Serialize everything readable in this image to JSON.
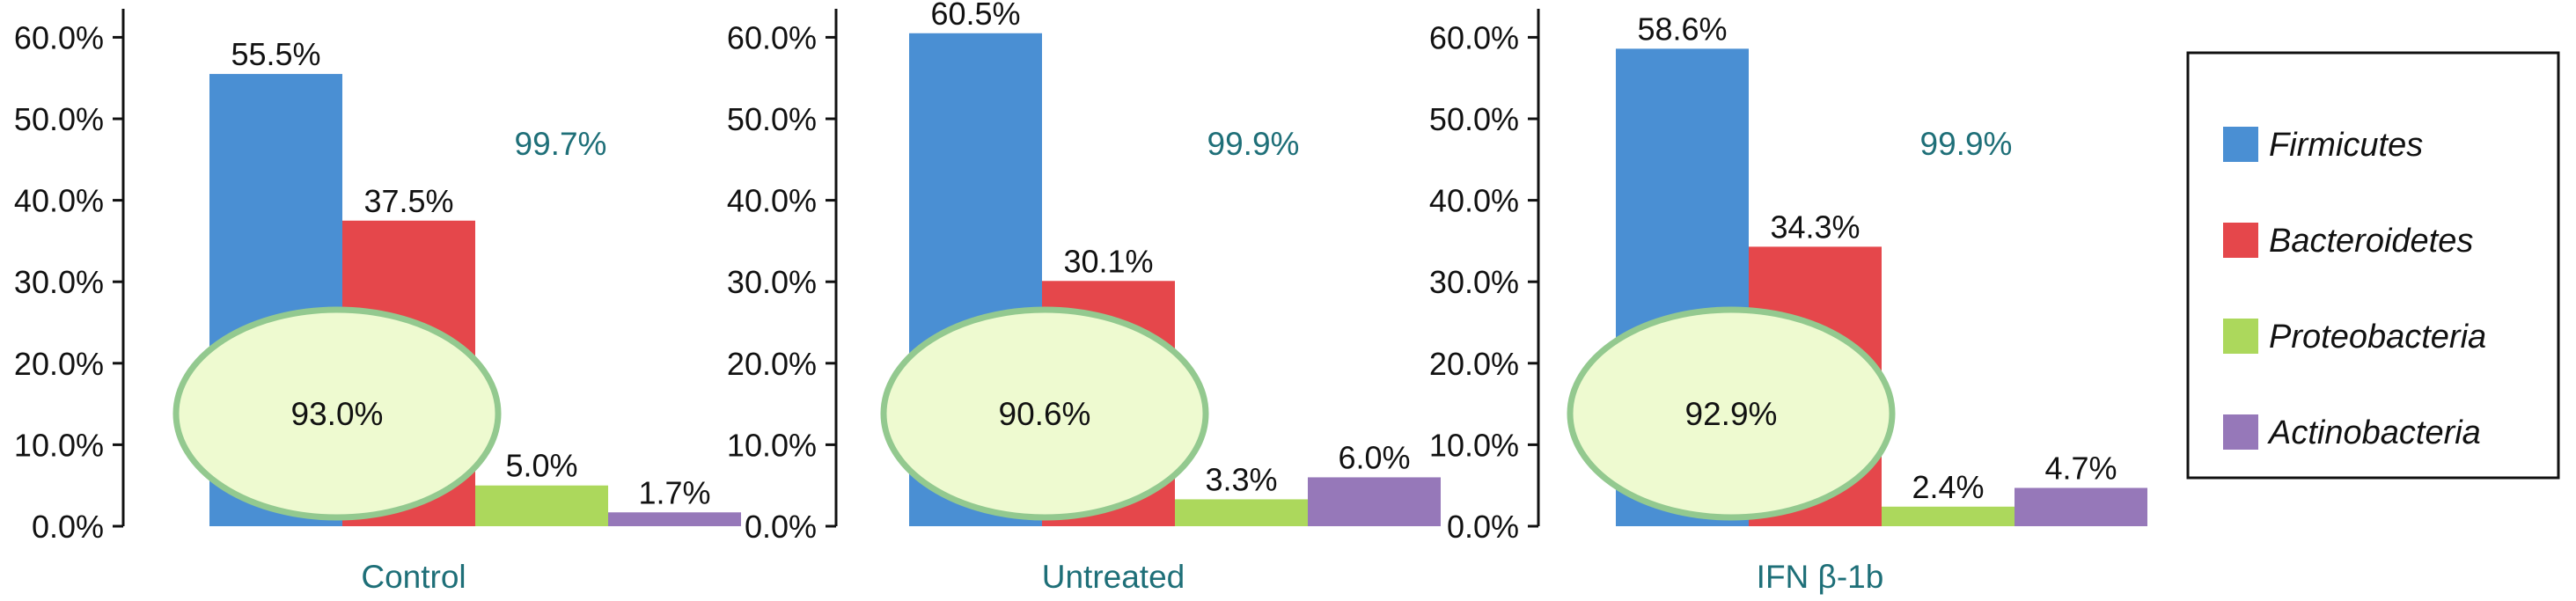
{
  "colors": {
    "accent_text": "#1e6f78",
    "ellipse_fill": "#eefad0",
    "ellipse_stroke": "#93c98f",
    "axis": "#111111"
  },
  "chart_data": [
    {
      "type": "bar",
      "xlabel": "Control",
      "categories": [
        "Firmicutes",
        "Bacteroidetes",
        "Proteobacteria",
        "Actinobacteria"
      ],
      "values": [
        55.5,
        37.5,
        5.0,
        1.7
      ],
      "value_labels": [
        "55.5%",
        "37.5%",
        "5.0%",
        "1.7%"
      ],
      "yticks": [
        "0.0%",
        "10.0%",
        "20.0%",
        "30.0%",
        "40.0%",
        "50.0%",
        "60.0%"
      ],
      "ylim": [
        0,
        65
      ],
      "summary_label": "99.7%",
      "ellipse_label": "93.0%"
    },
    {
      "type": "bar",
      "xlabel": "Untreated",
      "categories": [
        "Firmicutes",
        "Bacteroidetes",
        "Proteobacteria",
        "Actinobacteria"
      ],
      "values": [
        60.5,
        30.1,
        3.3,
        6.0
      ],
      "value_labels": [
        "60.5%",
        "30.1%",
        "3.3%",
        "6.0%"
      ],
      "yticks": [
        "0.0%",
        "10.0%",
        "20.0%",
        "30.0%",
        "40.0%",
        "50.0%",
        "60.0%"
      ],
      "ylim": [
        0,
        65
      ],
      "summary_label": "99.9%",
      "ellipse_label": "90.6%"
    },
    {
      "type": "bar",
      "xlabel": "IFN β-1b",
      "categories": [
        "Firmicutes",
        "Bacteroidetes",
        "Proteobacteria",
        "Actinobacteria"
      ],
      "values": [
        58.6,
        34.3,
        2.4,
        4.7
      ],
      "value_labels": [
        "58.6%",
        "34.3%",
        "2.4%",
        "4.7%"
      ],
      "yticks": [
        "0.0%",
        "10.0%",
        "20.0%",
        "30.0%",
        "40.0%",
        "50.0%",
        "60.0%"
      ],
      "ylim": [
        0,
        65
      ],
      "summary_label": "99.9%",
      "ellipse_label": "92.9%"
    }
  ],
  "legend": {
    "placement": "right",
    "items": [
      {
        "label": "Firmicutes",
        "color": "#4a8fd3"
      },
      {
        "label": "Bacteroidetes",
        "color": "#e5474b"
      },
      {
        "label": "Proteobacteria",
        "color": "#acd85c"
      },
      {
        "label": "Actinobacteria",
        "color": "#9678b9"
      }
    ]
  }
}
